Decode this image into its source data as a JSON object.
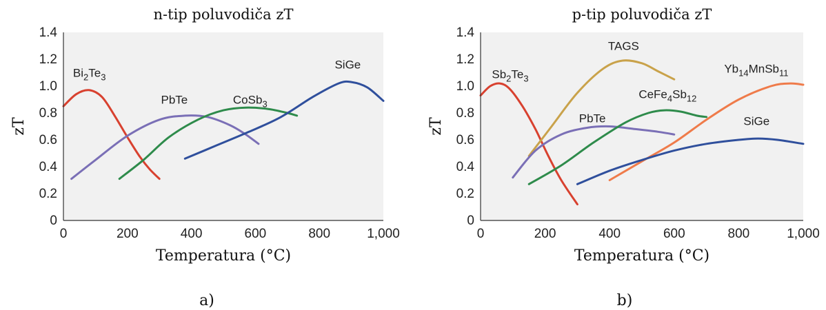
{
  "chart_data": [
    {
      "type": "line",
      "title": "n-tip poluvodiča zT",
      "xlabel": "Temperatura (°C)",
      "ylabel": "zT",
      "xlim": [
        0,
        1000
      ],
      "ylim": [
        0,
        1.4
      ],
      "xticks": [
        "0",
        "200",
        "400",
        "600",
        "800",
        "1,000"
      ],
      "yticks": [
        "0",
        "0.2",
        "0.4",
        "0.6",
        "0.8",
        "1.0",
        "1.2",
        "1.4"
      ],
      "grid": false,
      "panel_label": "a)",
      "series": [
        {
          "name": "Bi2Te3",
          "label_main": "Bi",
          "label_parts": [
            [
              "Bi",
              ""
            ],
            [
              "2",
              "sub"
            ],
            [
              "Te",
              ""
            ],
            [
              "3",
              "sub"
            ]
          ],
          "color": "#d8412f",
          "x": [
            0,
            40,
            80,
            120,
            160,
            200,
            240,
            270,
            300
          ],
          "y": [
            0.85,
            0.94,
            0.97,
            0.92,
            0.78,
            0.62,
            0.47,
            0.38,
            0.31
          ]
        },
        {
          "name": "PbTe",
          "label_parts": [
            [
              "PbTe",
              ""
            ]
          ],
          "color": "#7a6fb6",
          "x": [
            25,
            100,
            200,
            300,
            380,
            450,
            520,
            570,
            610
          ],
          "y": [
            0.31,
            0.45,
            0.63,
            0.75,
            0.78,
            0.77,
            0.71,
            0.64,
            0.57
          ]
        },
        {
          "name": "CoSb3",
          "label_parts": [
            [
              "CoSb",
              ""
            ],
            [
              "3",
              "sub"
            ]
          ],
          "color": "#2e8b4b",
          "x": [
            175,
            250,
            330,
            420,
            500,
            570,
            640,
            700,
            730
          ],
          "y": [
            0.31,
            0.45,
            0.62,
            0.75,
            0.82,
            0.84,
            0.83,
            0.8,
            0.78
          ]
        },
        {
          "name": "SiGe",
          "label_parts": [
            [
              "SiGe",
              ""
            ]
          ],
          "color": "#2f4f9c",
          "x": [
            380,
            480,
            580,
            680,
            780,
            860,
            900,
            950,
            1000
          ],
          "y": [
            0.46,
            0.56,
            0.66,
            0.77,
            0.92,
            1.02,
            1.03,
            0.99,
            0.89
          ]
        }
      ],
      "annotations": [
        {
          "series": "Bi2Te3",
          "x": 30,
          "y": 1.07
        },
        {
          "series": "PbTe",
          "x": 305,
          "y": 0.87
        },
        {
          "series": "CoSb3",
          "x": 530,
          "y": 0.87
        },
        {
          "series": "SiGe",
          "x": 848,
          "y": 1.13
        }
      ]
    },
    {
      "type": "line",
      "title": "p-tip poluvodiča zT",
      "xlabel": "Temperatura (°C)",
      "ylabel": "zT",
      "xlim": [
        0,
        1000
      ],
      "ylim": [
        0,
        1.4
      ],
      "xticks": [
        "0",
        "200",
        "400",
        "600",
        "800",
        "1,000"
      ],
      "yticks": [
        "0",
        "0.2",
        "0.4",
        "0.6",
        "0.8",
        "1.0",
        "1.2",
        "1.4"
      ],
      "grid": false,
      "panel_label": "b)",
      "series": [
        {
          "name": "Sb2Te3",
          "label_parts": [
            [
              "Sb",
              ""
            ],
            [
              "2",
              "sub"
            ],
            [
              "Te",
              ""
            ],
            [
              "3",
              "sub"
            ]
          ],
          "color": "#d8412f",
          "x": [
            0,
            30,
            60,
            90,
            130,
            170,
            210,
            250,
            300
          ],
          "y": [
            0.93,
            1.0,
            1.02,
            0.98,
            0.85,
            0.68,
            0.48,
            0.3,
            0.12
          ]
        },
        {
          "name": "TAGS",
          "label_parts": [
            [
              "TAGS",
              ""
            ]
          ],
          "color": "#c9a24a",
          "x": [
            150,
            220,
            300,
            380,
            440,
            500,
            550,
            600
          ],
          "y": [
            0.48,
            0.7,
            0.95,
            1.13,
            1.19,
            1.17,
            1.11,
            1.05
          ]
        },
        {
          "name": "PbTe",
          "label_parts": [
            [
              "PbTe",
              ""
            ]
          ],
          "color": "#7a6fb6",
          "x": [
            100,
            170,
            250,
            330,
            400,
            480,
            550,
            600
          ],
          "y": [
            0.32,
            0.52,
            0.64,
            0.69,
            0.7,
            0.68,
            0.66,
            0.64
          ]
        },
        {
          "name": "CeFe4Sb12",
          "label_parts": [
            [
              "CeFe",
              ""
            ],
            [
              "4",
              "sub"
            ],
            [
              "Sb",
              ""
            ],
            [
              "12",
              "sub"
            ]
          ],
          "color": "#2e8b4b",
          "x": [
            150,
            250,
            350,
            450,
            520,
            570,
            620,
            670,
            700
          ],
          "y": [
            0.27,
            0.41,
            0.58,
            0.73,
            0.8,
            0.82,
            0.81,
            0.78,
            0.77
          ]
        },
        {
          "name": "Yb14MnSb11",
          "label_parts": [
            [
              "Yb",
              ""
            ],
            [
              "14",
              "sub"
            ],
            [
              "MnSb",
              ""
            ],
            [
              "11",
              "sub"
            ]
          ],
          "color": "#ef7b4a",
          "x": [
            400,
            500,
            600,
            700,
            800,
            900,
            960,
            1000
          ],
          "y": [
            0.3,
            0.44,
            0.58,
            0.75,
            0.9,
            1.0,
            1.02,
            1.01
          ]
        },
        {
          "name": "SiGe",
          "label_parts": [
            [
              "SiGe",
              ""
            ]
          ],
          "color": "#2f4f9c",
          "x": [
            300,
            400,
            500,
            600,
            700,
            800,
            860,
            920,
            1000
          ],
          "y": [
            0.27,
            0.37,
            0.45,
            0.52,
            0.57,
            0.6,
            0.61,
            0.6,
            0.57
          ]
        }
      ],
      "annotations": [
        {
          "series": "Sb2Te3",
          "x": 35,
          "y": 1.06
        },
        {
          "series": "TAGS",
          "x": 395,
          "y": 1.27
        },
        {
          "series": "PbTe",
          "x": 305,
          "y": 0.73
        },
        {
          "series": "CeFe4Sb12",
          "x": 490,
          "y": 0.91
        },
        {
          "series": "Yb14MnSb11",
          "x": 755,
          "y": 1.1
        },
        {
          "series": "SiGe",
          "x": 815,
          "y": 0.71
        }
      ]
    }
  ]
}
